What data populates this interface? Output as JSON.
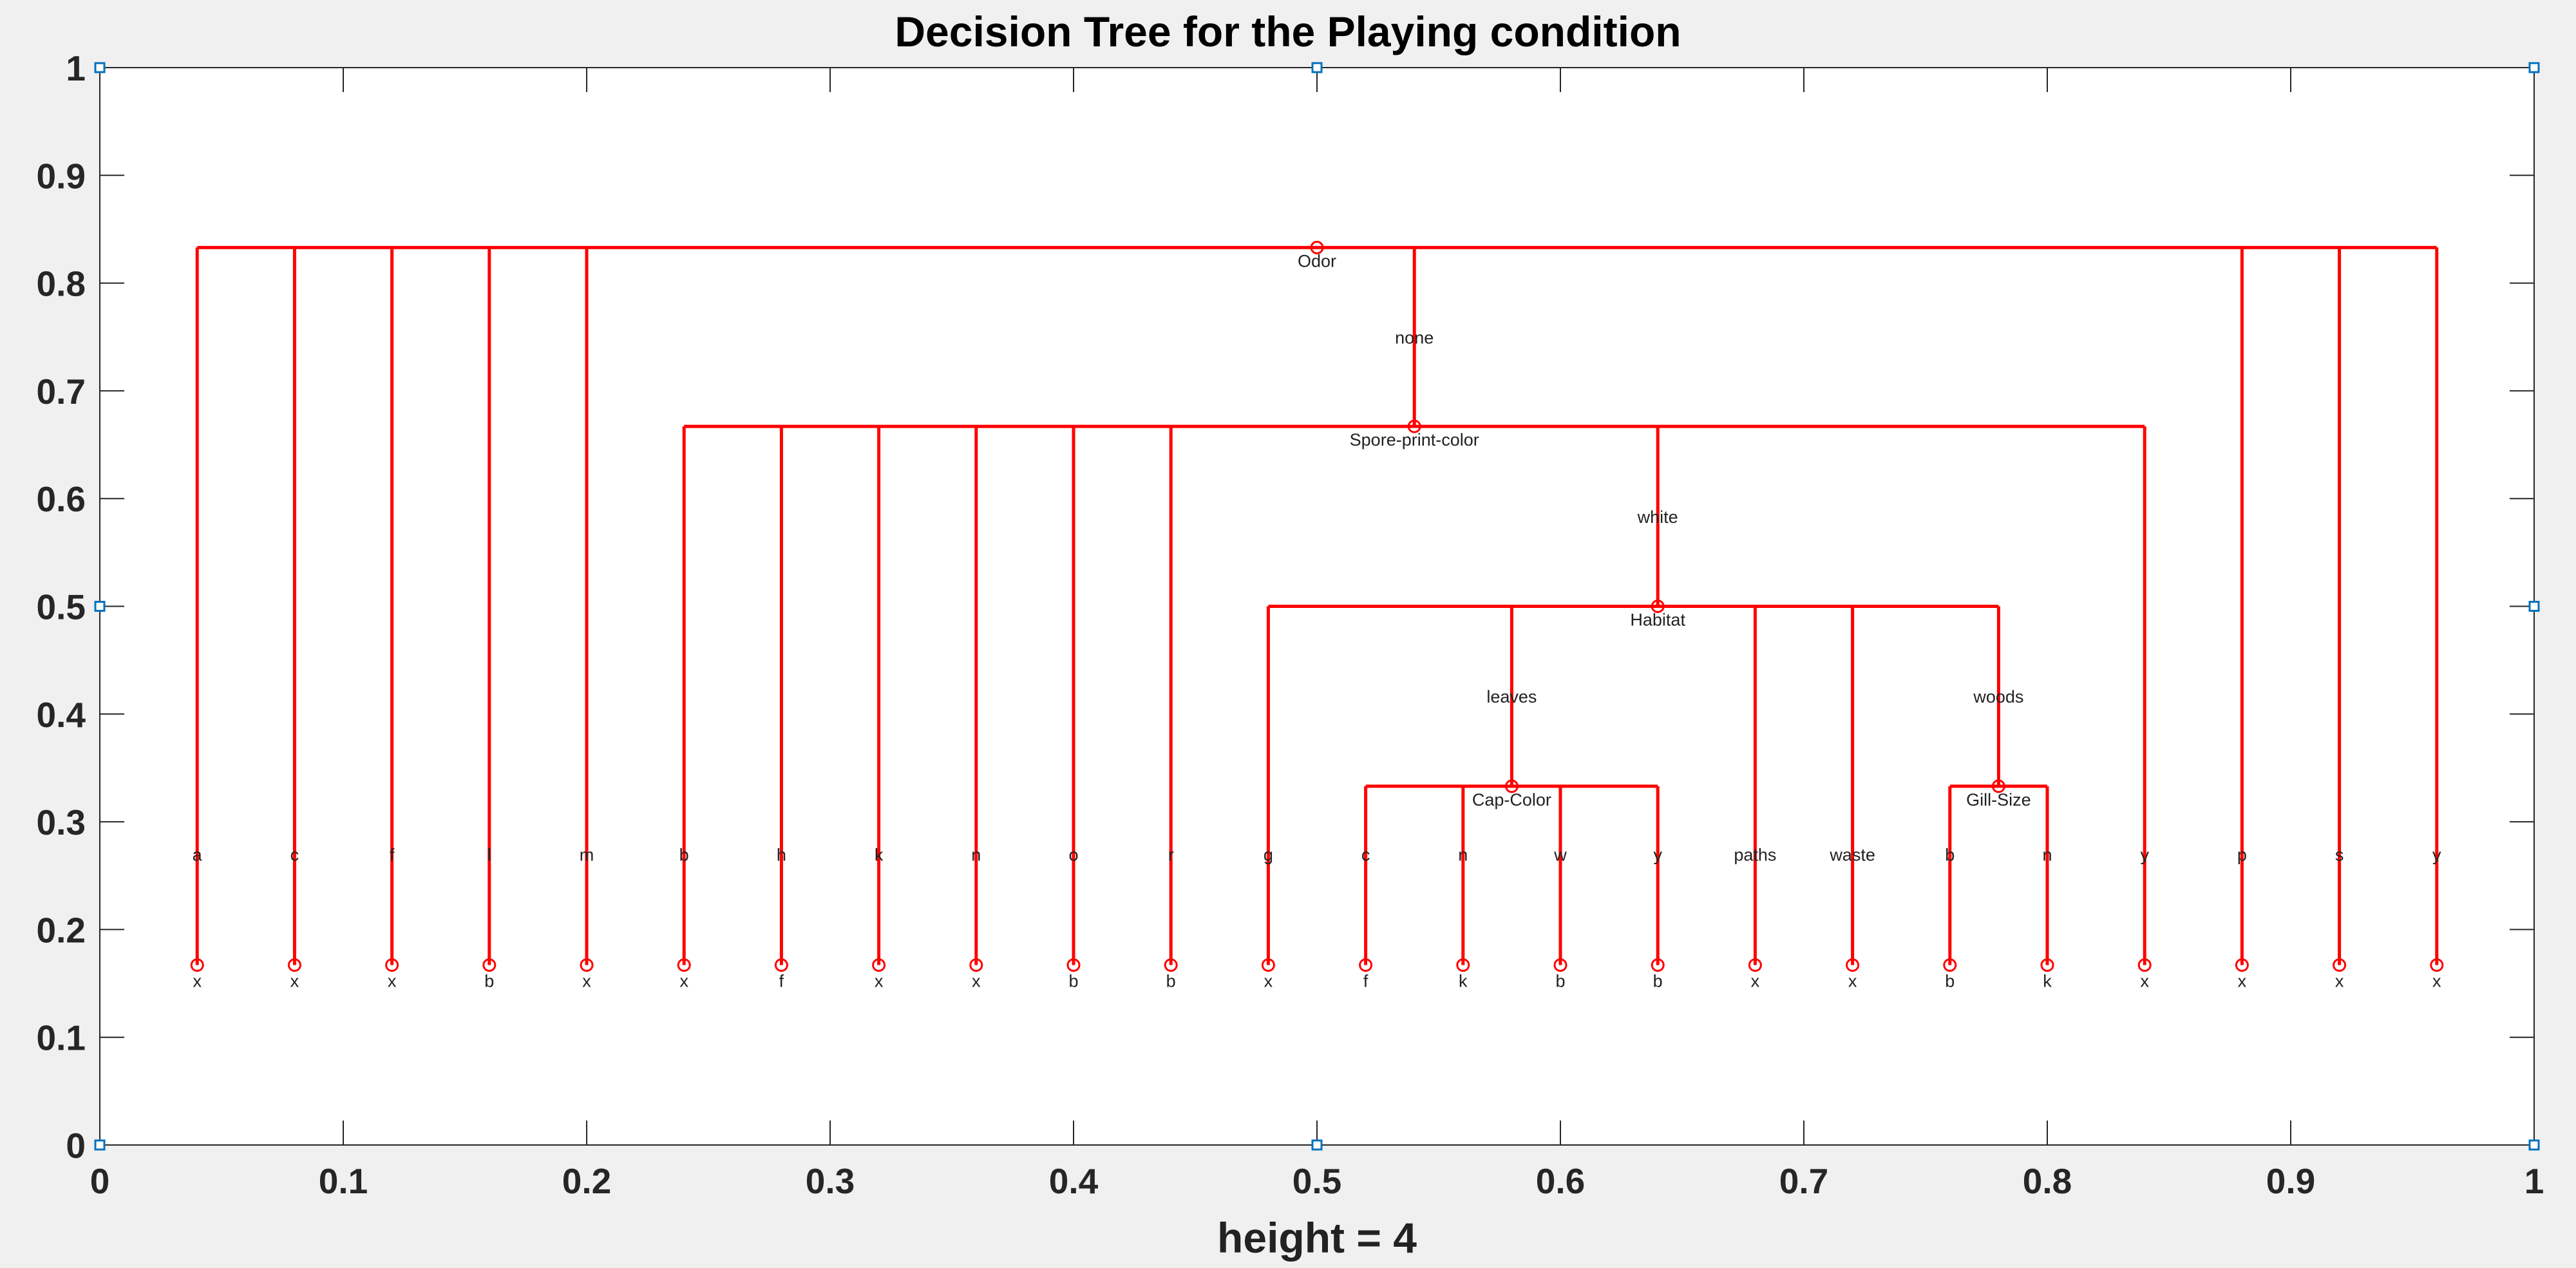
{
  "chart_data": {
    "type": "tree",
    "title": "Decision Tree for the Playing condition",
    "xlabel": "height = 4",
    "xlim": [
      0,
      1
    ],
    "ylim": [
      0,
      1
    ],
    "xticks": [
      "0",
      "0.1",
      "0.2",
      "0.3",
      "0.4",
      "0.5",
      "0.6",
      "0.7",
      "0.8",
      "0.9",
      "1"
    ],
    "yticks": [
      "0",
      "0.1",
      "0.2",
      "0.3",
      "0.4",
      "0.5",
      "0.6",
      "0.7",
      "0.8",
      "0.9",
      "1"
    ],
    "nodes": [
      {
        "id": "odor",
        "x": 0.5,
        "y": 0.833,
        "label": "Odor"
      },
      {
        "id": "spc",
        "x": 0.54,
        "y": 0.667,
        "label": "Spore-print-color"
      },
      {
        "id": "hab",
        "x": 0.64,
        "y": 0.5,
        "label": "Habitat"
      },
      {
        "id": "cap",
        "x": 0.58,
        "y": 0.333,
        "label": "Cap-Color"
      },
      {
        "id": "gill",
        "x": 0.78,
        "y": 0.333,
        "label": "Gill-Size"
      }
    ],
    "edges": [
      {
        "parent": "odor",
        "x": 0.04,
        "label": "a",
        "leaf": "x"
      },
      {
        "parent": "odor",
        "x": 0.08,
        "label": "c",
        "leaf": "x"
      },
      {
        "parent": "odor",
        "x": 0.12,
        "label": "f",
        "leaf": "x"
      },
      {
        "parent": "odor",
        "x": 0.16,
        "label": "l",
        "leaf": "b"
      },
      {
        "parent": "odor",
        "x": 0.2,
        "label": "m",
        "leaf": "x"
      },
      {
        "parent": "odor",
        "x": 0.54,
        "label": "none",
        "child": "spc"
      },
      {
        "parent": "odor",
        "x": 0.88,
        "label": "p",
        "leaf": "x"
      },
      {
        "parent": "odor",
        "x": 0.92,
        "label": "s",
        "leaf": "x"
      },
      {
        "parent": "odor",
        "x": 0.96,
        "label": "y",
        "leaf": "x"
      },
      {
        "parent": "spc",
        "x": 0.24,
        "label": "b",
        "leaf": "x"
      },
      {
        "parent": "spc",
        "x": 0.28,
        "label": "h",
        "leaf": "f"
      },
      {
        "parent": "spc",
        "x": 0.32,
        "label": "k",
        "leaf": "x"
      },
      {
        "parent": "spc",
        "x": 0.36,
        "label": "n",
        "leaf": "x"
      },
      {
        "parent": "spc",
        "x": 0.4,
        "label": "o",
        "leaf": "b"
      },
      {
        "parent": "spc",
        "x": 0.44,
        "label": "r",
        "leaf": "b"
      },
      {
        "parent": "spc",
        "x": 0.64,
        "label": "white",
        "child": "hab"
      },
      {
        "parent": "spc",
        "x": 0.84,
        "label": "y",
        "leaf": "x"
      },
      {
        "parent": "hab",
        "x": 0.48,
        "label": "g",
        "leaf": "x"
      },
      {
        "parent": "hab",
        "x": 0.58,
        "label": "leaves",
        "child": "cap"
      },
      {
        "parent": "hab",
        "x": 0.68,
        "label": "paths",
        "leaf": "x"
      },
      {
        "parent": "hab",
        "x": 0.72,
        "label": "waste",
        "leaf": "x"
      },
      {
        "parent": "hab",
        "x": 0.78,
        "label": "woods",
        "child": "gill"
      },
      {
        "parent": "cap",
        "x": 0.52,
        "label": "c",
        "leaf": "f"
      },
      {
        "parent": "cap",
        "x": 0.56,
        "label": "n",
        "leaf": "k"
      },
      {
        "parent": "cap",
        "x": 0.6,
        "label": "w",
        "leaf": "b"
      },
      {
        "parent": "cap",
        "x": 0.64,
        "label": "y",
        "leaf": "b"
      },
      {
        "parent": "gill",
        "x": 0.76,
        "label": "b",
        "leaf": "b"
      },
      {
        "parent": "gill",
        "x": 0.8,
        "label": "n",
        "leaf": "k"
      }
    ],
    "leaf_y": 0.167,
    "grid": false,
    "colors": {
      "tree": "#ff0000",
      "axes": "#262626",
      "figure_bg": "#f0f0f0",
      "axes_bg": "#ffffff",
      "handle": "#0072bd"
    }
  }
}
